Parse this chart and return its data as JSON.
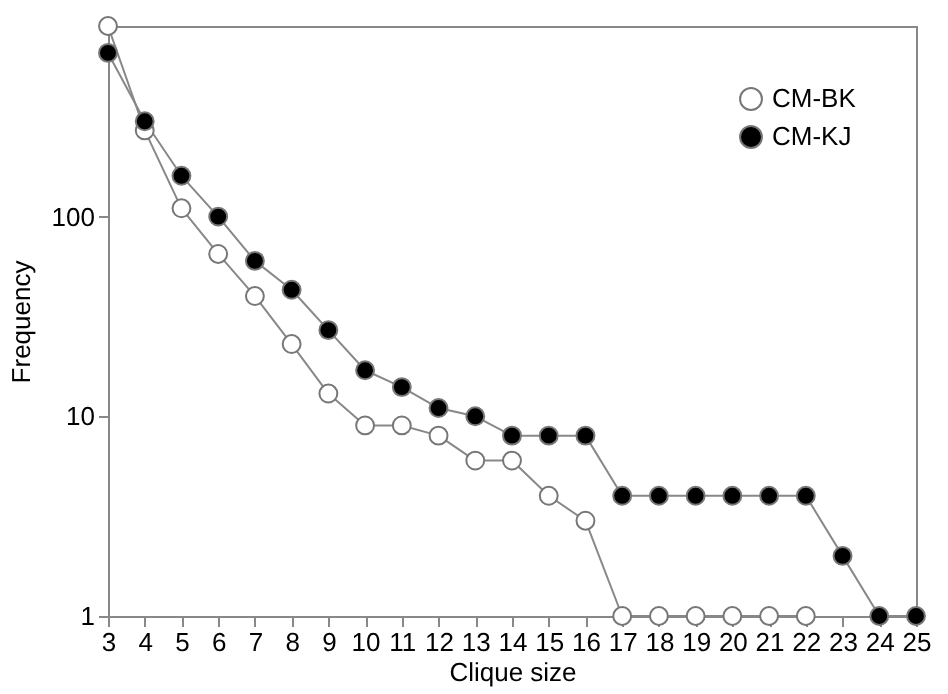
{
  "chart_data": {
    "type": "line",
    "xlabel": "Clique size",
    "ylabel": "Frequency",
    "categories": [
      "3",
      "4",
      "5",
      "6",
      "7",
      "8",
      "9",
      "10",
      "11",
      "12",
      "13",
      "14",
      "15",
      "16",
      "17",
      "18",
      "19",
      "20",
      "21",
      "22",
      "23",
      "24",
      "25"
    ],
    "log": "y",
    "ylim": [
      1,
      900
    ],
    "yticks": [
      1,
      10,
      100
    ],
    "grid": false,
    "legend": "top right",
    "marker": "circle",
    "line_style": "solid",
    "series": [
      {
        "name": "CM-BK",
        "color": "#ffffff",
        "values": [
          900,
          270,
          110,
          65,
          40,
          23,
          13,
          9,
          9,
          8,
          6,
          6,
          4,
          3,
          1,
          1,
          1,
          1,
          1,
          1,
          null,
          null,
          null
        ]
      },
      {
        "name": "CM-KJ",
        "color": "#000000",
        "values": [
          660,
          300,
          160,
          100,
          60,
          43,
          27,
          17,
          14,
          11,
          10,
          8,
          8,
          8,
          4,
          4,
          4,
          4,
          4,
          4,
          2,
          1,
          1
        ]
      }
    ]
  }
}
